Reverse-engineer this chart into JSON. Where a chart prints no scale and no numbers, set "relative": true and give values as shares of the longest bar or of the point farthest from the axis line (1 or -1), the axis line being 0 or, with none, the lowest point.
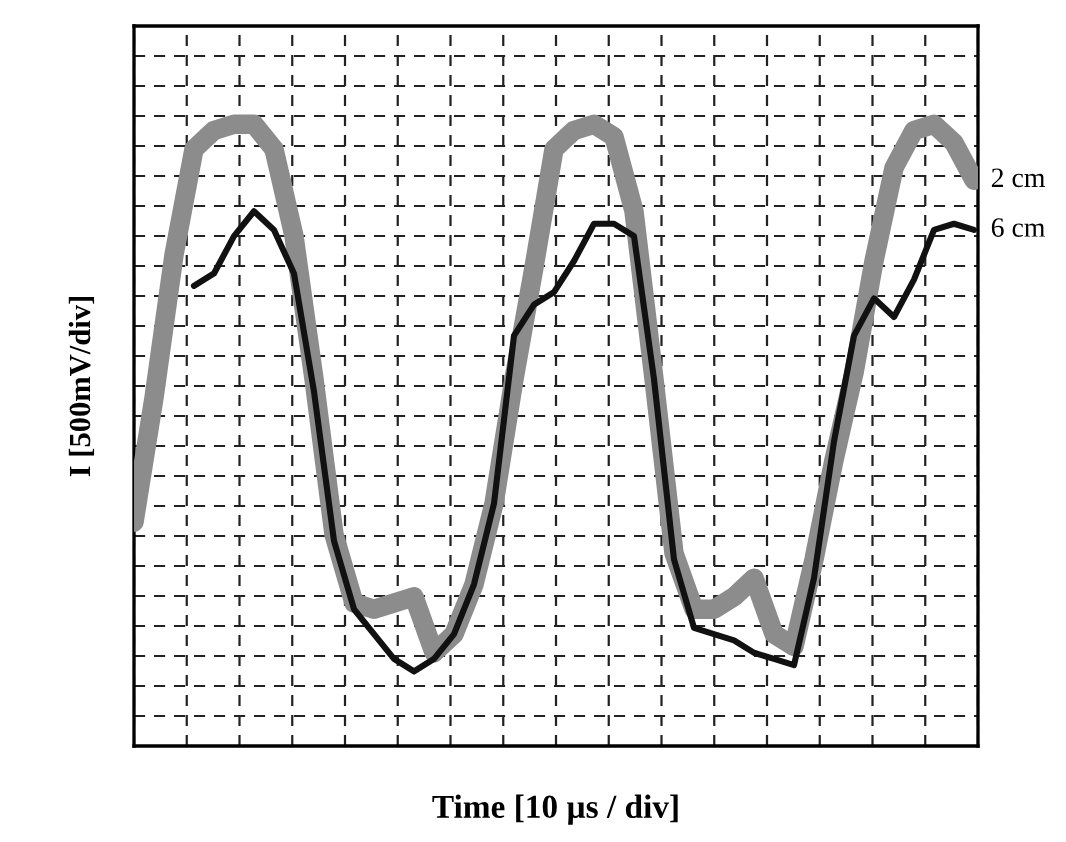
{
  "chart_data": {
    "type": "line",
    "relative": true,
    "xlabel": "Time [10 µs / div]",
    "ylabel": "I [500mV/div]",
    "grid": true,
    "legend": false,
    "categories": [
      null,
      null,
      null,
      null,
      null,
      null,
      null,
      null,
      null,
      null,
      null,
      null,
      null,
      null,
      null,
      null,
      null,
      null,
      null,
      null,
      null,
      null,
      null,
      null,
      null,
      null,
      null,
      null,
      null,
      null,
      null,
      null,
      null,
      null,
      null,
      null,
      null,
      null,
      null,
      null,
      null,
      null,
      null
    ],
    "series": [
      {
        "name": "2 cm",
        "color": "#8c8c8c",
        "values": [
          0.36,
          0.56,
          0.79,
          0.96,
          0.99,
          1.0,
          1.0,
          0.96,
          0.82,
          0.59,
          0.34,
          0.23,
          0.22,
          0.23,
          0.24,
          0.15,
          0.18,
          0.26,
          0.39,
          0.59,
          0.77,
          0.96,
          0.99,
          1.0,
          0.98,
          0.86,
          0.59,
          0.31,
          0.22,
          0.22,
          0.24,
          0.27,
          0.18,
          0.16,
          0.3,
          0.46,
          0.6,
          0.78,
          0.93,
          0.99,
          1.0,
          0.97,
          0.91
        ]
      },
      {
        "name": "6 cm",
        "color": "#111111",
        "values": [
          null,
          null,
          null,
          0.74,
          0.76,
          0.82,
          0.86,
          0.83,
          0.76,
          0.57,
          0.33,
          0.22,
          0.18,
          0.14,
          0.12,
          0.14,
          0.18,
          0.26,
          0.39,
          0.66,
          0.71,
          0.73,
          0.78,
          0.84,
          0.84,
          0.82,
          0.59,
          0.3,
          0.19,
          0.18,
          0.17,
          0.15,
          0.14,
          0.13,
          0.27,
          0.49,
          0.66,
          0.72,
          0.69,
          0.75,
          0.83,
          0.84,
          0.83
        ]
      }
    ]
  }
}
